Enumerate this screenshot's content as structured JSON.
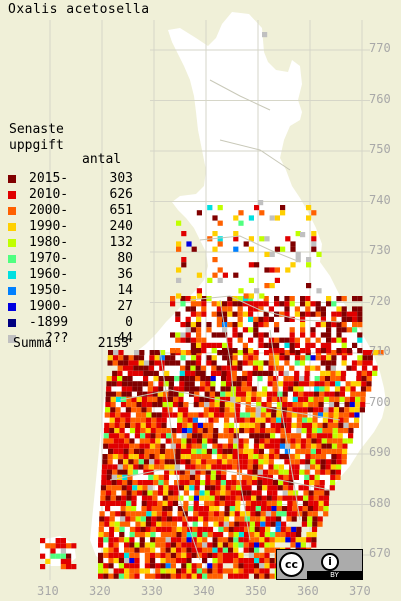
{
  "title": "Oxalis acetosella",
  "legend": {
    "heading_line1": "Senaste",
    "heading_line2": "uppgift",
    "count_header": "antal",
    "entries": [
      {
        "label": "2015-",
        "count": "303",
        "color": "#800000"
      },
      {
        "label": "2010-",
        "count": "626",
        "color": "#e00000"
      },
      {
        "label": "2000-",
        "count": "651",
        "color": "#ff6000"
      },
      {
        "label": "1990-",
        "count": "240",
        "color": "#ffd000"
      },
      {
        "label": "1980-",
        "count": "132",
        "color": "#c0ff00"
      },
      {
        "label": "1970-",
        "count": "80",
        "color": "#50ff80"
      },
      {
        "label": "1960-",
        "count": "36",
        "color": "#00e0e0"
      },
      {
        "label": "1950-",
        "count": "14",
        "color": "#0080ff"
      },
      {
        "label": "1900-",
        "count": "27",
        "color": "#0000e0"
      },
      {
        "label": "-1899",
        "count": "0",
        "color": "#000080"
      },
      {
        "label": "???",
        "count": "44",
        "color": "#c0c0c0"
      }
    ],
    "summa_label": "Summa",
    "summa_value": "2153"
  },
  "axes": {
    "y_ticks": [
      "770",
      "760",
      "750",
      "740",
      "730",
      "720",
      "710",
      "700",
      "690",
      "680",
      "670"
    ],
    "x_ticks": [
      "310",
      "320",
      "330",
      "340",
      "350",
      "360",
      "370"
    ]
  },
  "license": {
    "cc_text": "cc",
    "by_symbol": "i",
    "by_text": "BY"
  },
  "colors": {
    "background": "#f0f0d8",
    "land": "#ffffff",
    "grid": "#d0d0c0",
    "border": "#b0b0a0"
  }
}
